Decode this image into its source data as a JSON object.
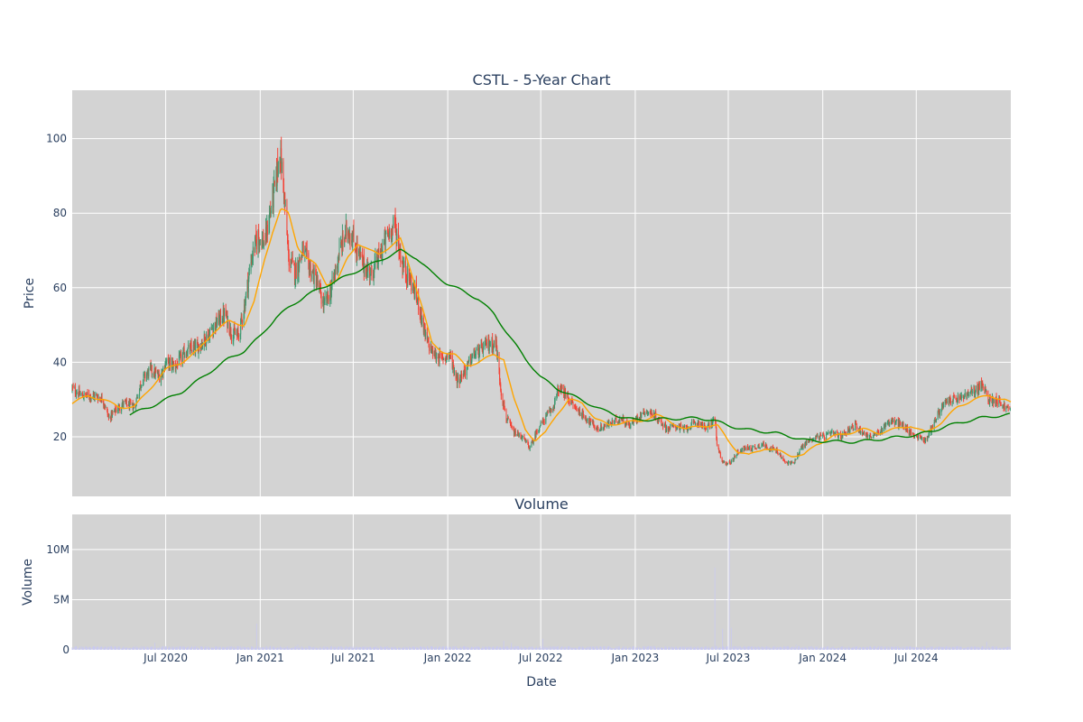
{
  "chart_data": [
    {
      "type": "candlestick",
      "title": "CSTL - 5-Year Chart",
      "xlabel": "",
      "ylabel": "Price",
      "ylim": [
        4,
        113
      ],
      "xlim": [
        "2020-01-01",
        "2025-01-01"
      ],
      "y_ticks": [
        20,
        40,
        60,
        80,
        100
      ],
      "grid": true,
      "background": "#d3d3d3",
      "colors": {
        "up": "#3d9970",
        "down": "#f44336",
        "ma_short": "#ffa500",
        "ma_long": "#008000"
      },
      "price_anchors": [
        [
          "2020-01-01",
          33
        ],
        [
          "2020-01-20",
          31
        ],
        [
          "2020-02-15",
          31
        ],
        [
          "2020-03-01",
          30
        ],
        [
          "2020-03-12",
          25
        ],
        [
          "2020-03-25",
          27
        ],
        [
          "2020-04-10",
          29
        ],
        [
          "2020-05-01",
          28
        ],
        [
          "2020-05-15",
          35
        ],
        [
          "2020-06-01",
          38
        ],
        [
          "2020-06-20",
          36
        ],
        [
          "2020-07-01",
          40
        ],
        [
          "2020-07-20",
          39
        ],
        [
          "2020-08-10",
          43
        ],
        [
          "2020-09-01",
          44
        ],
        [
          "2020-09-20",
          47
        ],
        [
          "2020-10-10",
          51
        ],
        [
          "2020-10-25",
          53
        ],
        [
          "2020-11-05",
          48
        ],
        [
          "2020-11-20",
          47
        ],
        [
          "2020-12-01",
          55
        ],
        [
          "2020-12-15",
          68
        ],
        [
          "2020-12-28",
          74
        ],
        [
          "2021-01-10",
          72
        ],
        [
          "2021-01-20",
          80
        ],
        [
          "2021-02-01",
          89
        ],
        [
          "2021-02-08",
          97
        ],
        [
          "2021-02-15",
          88
        ],
        [
          "2021-02-25",
          68
        ],
        [
          "2021-03-10",
          64
        ],
        [
          "2021-03-25",
          70
        ],
        [
          "2021-04-05",
          66
        ],
        [
          "2021-04-20",
          62
        ],
        [
          "2021-05-05",
          55
        ],
        [
          "2021-05-20",
          60
        ],
        [
          "2021-06-05",
          70
        ],
        [
          "2021-06-20",
          76
        ],
        [
          "2021-07-01",
          73
        ],
        [
          "2021-07-20",
          66
        ],
        [
          "2021-08-05",
          64
        ],
        [
          "2021-08-20",
          68
        ],
        [
          "2021-09-05",
          74
        ],
        [
          "2021-09-20",
          77
        ],
        [
          "2021-10-05",
          66
        ],
        [
          "2021-10-20",
          62
        ],
        [
          "2021-11-05",
          56
        ],
        [
          "2021-11-20",
          46
        ],
        [
          "2021-12-05",
          42
        ],
        [
          "2021-12-20",
          41
        ],
        [
          "2022-01-05",
          42
        ],
        [
          "2022-01-20",
          35
        ],
        [
          "2022-02-05",
          38
        ],
        [
          "2022-02-20",
          42
        ],
        [
          "2022-03-05",
          43
        ],
        [
          "2022-03-20",
          45
        ],
        [
          "2022-04-05",
          45
        ],
        [
          "2022-04-15",
          32
        ],
        [
          "2022-04-25",
          25
        ],
        [
          "2022-05-10",
          21
        ],
        [
          "2022-05-25",
          20
        ],
        [
          "2022-06-10",
          17
        ],
        [
          "2022-06-25",
          22
        ],
        [
          "2022-07-10",
          25
        ],
        [
          "2022-07-25",
          28
        ],
        [
          "2022-08-05",
          33
        ],
        [
          "2022-08-20",
          31
        ],
        [
          "2022-09-05",
          28
        ],
        [
          "2022-09-20",
          26
        ],
        [
          "2022-10-05",
          24
        ],
        [
          "2022-10-20",
          22
        ],
        [
          "2022-11-05",
          23
        ],
        [
          "2022-11-20",
          24
        ],
        [
          "2022-12-05",
          25
        ],
        [
          "2022-12-20",
          23
        ],
        [
          "2023-01-05",
          25
        ],
        [
          "2023-01-20",
          27
        ],
        [
          "2023-02-05",
          26
        ],
        [
          "2023-02-20",
          24
        ],
        [
          "2023-03-05",
          22
        ],
        [
          "2023-03-20",
          23
        ],
        [
          "2023-04-05",
          22
        ],
        [
          "2023-04-20",
          23
        ],
        [
          "2023-05-05",
          24
        ],
        [
          "2023-05-20",
          22
        ],
        [
          "2023-06-05",
          25
        ],
        [
          "2023-06-10",
          17
        ],
        [
          "2023-06-20",
          13
        ],
        [
          "2023-07-05",
          13
        ],
        [
          "2023-07-20",
          16
        ],
        [
          "2023-08-05",
          17
        ],
        [
          "2023-08-20",
          17
        ],
        [
          "2023-09-05",
          18
        ],
        [
          "2023-09-20",
          17
        ],
        [
          "2023-10-05",
          16
        ],
        [
          "2023-10-20",
          13
        ],
        [
          "2023-11-05",
          13
        ],
        [
          "2023-11-20",
          17
        ],
        [
          "2023-12-05",
          19
        ],
        [
          "2023-12-20",
          20
        ],
        [
          "2024-01-05",
          20
        ],
        [
          "2024-01-20",
          21
        ],
        [
          "2024-02-05",
          20
        ],
        [
          "2024-02-20",
          22
        ],
        [
          "2024-03-05",
          23
        ],
        [
          "2024-03-20",
          21
        ],
        [
          "2024-04-05",
          20
        ],
        [
          "2024-04-20",
          21
        ],
        [
          "2024-05-05",
          24
        ],
        [
          "2024-05-20",
          24
        ],
        [
          "2024-06-05",
          23
        ],
        [
          "2024-06-20",
          21
        ],
        [
          "2024-07-05",
          20
        ],
        [
          "2024-07-20",
          19
        ],
        [
          "2024-08-05",
          24
        ],
        [
          "2024-08-20",
          28
        ],
        [
          "2024-09-05",
          30
        ],
        [
          "2024-09-20",
          30
        ],
        [
          "2024-10-05",
          31
        ],
        [
          "2024-10-20",
          32
        ],
        [
          "2024-11-05",
          34
        ],
        [
          "2024-11-20",
          30
        ],
        [
          "2024-12-05",
          30
        ],
        [
          "2024-12-20",
          28
        ],
        [
          "2025-01-01",
          27
        ]
      ],
      "ma_short_anchors": [
        [
          "2020-01-01",
          29
        ],
        [
          "2020-02-01",
          31
        ],
        [
          "2020-03-01",
          30
        ],
        [
          "2020-04-01",
          28
        ],
        [
          "2020-05-01",
          28
        ],
        [
          "2020-06-01",
          33
        ],
        [
          "2020-07-01",
          38
        ],
        [
          "2020-08-01",
          40
        ],
        [
          "2020-09-01",
          43
        ],
        [
          "2020-10-01",
          48
        ],
        [
          "2020-11-01",
          51
        ],
        [
          "2020-12-01",
          50
        ],
        [
          "2020-12-20",
          56
        ],
        [
          "2021-01-10",
          68
        ],
        [
          "2021-01-25",
          75
        ],
        [
          "2021-02-10",
          81
        ],
        [
          "2021-02-25",
          80
        ],
        [
          "2021-03-15",
          71
        ],
        [
          "2021-04-01",
          68
        ],
        [
          "2021-04-20",
          66
        ],
        [
          "2021-05-10",
          61
        ],
        [
          "2021-06-01",
          62
        ],
        [
          "2021-06-20",
          68
        ],
        [
          "2021-07-10",
          72
        ],
        [
          "2021-08-01",
          70
        ],
        [
          "2021-08-20",
          69
        ],
        [
          "2021-09-10",
          71
        ],
        [
          "2021-10-01",
          73
        ],
        [
          "2021-10-20",
          65
        ],
        [
          "2021-11-10",
          56
        ],
        [
          "2021-12-01",
          45
        ],
        [
          "2021-12-20",
          43
        ],
        [
          "2022-01-15",
          42
        ],
        [
          "2022-02-05",
          39
        ],
        [
          "2022-03-01",
          40
        ],
        [
          "2022-04-01",
          42
        ],
        [
          "2022-04-20",
          41
        ],
        [
          "2022-05-10",
          30
        ],
        [
          "2022-06-01",
          22
        ],
        [
          "2022-06-20",
          19
        ],
        [
          "2022-07-10",
          21
        ],
        [
          "2022-08-01",
          26
        ],
        [
          "2022-08-25",
          30
        ],
        [
          "2022-09-20",
          29
        ],
        [
          "2022-10-15",
          25
        ],
        [
          "2022-11-10",
          23
        ],
        [
          "2022-12-10",
          24
        ],
        [
          "2023-01-10",
          24
        ],
        [
          "2023-02-10",
          26
        ],
        [
          "2023-03-10",
          24
        ],
        [
          "2023-04-10",
          22
        ],
        [
          "2023-05-10",
          23
        ],
        [
          "2023-06-10",
          23
        ],
        [
          "2023-07-01",
          19
        ],
        [
          "2023-07-20",
          16
        ],
        [
          "2023-08-10",
          15
        ],
        [
          "2023-09-10",
          17
        ],
        [
          "2023-10-10",
          16
        ],
        [
          "2023-11-01",
          15
        ],
        [
          "2023-11-25",
          15
        ],
        [
          "2023-12-20",
          18
        ],
        [
          "2024-01-20",
          20
        ],
        [
          "2024-02-20",
          21
        ],
        [
          "2024-03-20",
          22
        ],
        [
          "2024-04-20",
          21
        ],
        [
          "2024-05-20",
          22
        ],
        [
          "2024-06-20",
          23
        ],
        [
          "2024-07-20",
          21
        ],
        [
          "2024-08-20",
          24
        ],
        [
          "2024-09-20",
          28
        ],
        [
          "2024-10-20",
          30
        ],
        [
          "2024-11-20",
          31
        ],
        [
          "2024-12-20",
          30
        ],
        [
          "2025-01-01",
          29
        ]
      ],
      "ma_long_anchors": [
        [
          "2020-04-22",
          26
        ],
        [
          "2020-06-01",
          28
        ],
        [
          "2020-07-01",
          30
        ],
        [
          "2020-08-01",
          32
        ],
        [
          "2020-09-01",
          35
        ],
        [
          "2020-10-01",
          38
        ],
        [
          "2020-11-01",
          41
        ],
        [
          "2020-12-01",
          43
        ],
        [
          "2021-01-01",
          47
        ],
        [
          "2021-02-01",
          52
        ],
        [
          "2021-03-01",
          55
        ],
        [
          "2021-04-01",
          58
        ],
        [
          "2021-05-01",
          60
        ],
        [
          "2021-06-01",
          62
        ],
        [
          "2021-07-01",
          64
        ],
        [
          "2021-08-01",
          66
        ],
        [
          "2021-09-01",
          68
        ],
        [
          "2021-10-01",
          70
        ],
        [
          "2021-11-01",
          68
        ],
        [
          "2021-12-01",
          64
        ],
        [
          "2022-01-01",
          61
        ],
        [
          "2022-02-01",
          59
        ],
        [
          "2022-03-01",
          57
        ],
        [
          "2022-04-01",
          53
        ],
        [
          "2022-05-01",
          47
        ],
        [
          "2022-06-01",
          41
        ],
        [
          "2022-07-01",
          36
        ],
        [
          "2022-08-01",
          33
        ],
        [
          "2022-09-01",
          31
        ],
        [
          "2022-10-01",
          29
        ],
        [
          "2022-11-01",
          27
        ],
        [
          "2022-12-01",
          25.5
        ],
        [
          "2023-01-01",
          24.5
        ],
        [
          "2023-02-01",
          24.6
        ],
        [
          "2023-03-01",
          24.8
        ],
        [
          "2023-04-01",
          24.9
        ],
        [
          "2023-05-01",
          25
        ],
        [
          "2023-06-01",
          24.5
        ],
        [
          "2023-07-01",
          23
        ],
        [
          "2023-08-01",
          22
        ],
        [
          "2023-09-01",
          21.5
        ],
        [
          "2023-10-01",
          21
        ],
        [
          "2023-11-01",
          20
        ],
        [
          "2023-12-01",
          19
        ],
        [
          "2024-01-01",
          18.8
        ],
        [
          "2024-02-01",
          18.7
        ],
        [
          "2024-03-01",
          18.6
        ],
        [
          "2024-04-01",
          19
        ],
        [
          "2024-05-01",
          19.5
        ],
        [
          "2024-06-01",
          20
        ],
        [
          "2024-07-01",
          20.5
        ],
        [
          "2024-08-01",
          21.5
        ],
        [
          "2024-09-01",
          23
        ],
        [
          "2024-10-01",
          24
        ],
        [
          "2024-11-01",
          25
        ],
        [
          "2024-12-01",
          25.5
        ],
        [
          "2025-01-01",
          26
        ]
      ]
    },
    {
      "type": "bar",
      "title": "Volume",
      "xlabel": "Date",
      "ylabel": "Volume",
      "ylim": [
        0,
        13500000
      ],
      "y_ticks": [
        0,
        5000000,
        10000000
      ],
      "y_tick_labels": [
        "0",
        "5M",
        "10M"
      ],
      "x_ticks": [
        "2020-07-01",
        "2021-01-01",
        "2021-07-01",
        "2022-01-01",
        "2022-07-01",
        "2023-01-01",
        "2023-07-01",
        "2024-01-01",
        "2024-07-01"
      ],
      "x_tick_labels": [
        "Jul 2020",
        "Jan 2021",
        "Jul 2021",
        "Jan 2022",
        "Jul 2022",
        "Jan 2023",
        "Jul 2023",
        "Jan 2024",
        "Jul 2024"
      ],
      "grid": true,
      "background": "#d3d3d3",
      "bar_color": "#c9c9f0",
      "baseline_volume": 250000,
      "spikes": [
        [
          "2020-06-10",
          700000
        ],
        [
          "2020-07-05",
          900000
        ],
        [
          "2020-12-25",
          2600000
        ],
        [
          "2021-03-15",
          500000
        ],
        [
          "2022-04-20",
          900000
        ],
        [
          "2022-05-05",
          700000
        ],
        [
          "2022-07-05",
          1100000
        ],
        [
          "2023-06-05",
          8200000
        ],
        [
          "2023-06-20",
          2100000
        ],
        [
          "2023-07-03",
          12800000
        ],
        [
          "2023-07-07",
          2200000
        ],
        [
          "2023-07-15",
          800000
        ],
        [
          "2023-11-10",
          500000
        ],
        [
          "2024-09-01",
          1500000
        ],
        [
          "2024-11-15",
          800000
        ]
      ]
    }
  ]
}
